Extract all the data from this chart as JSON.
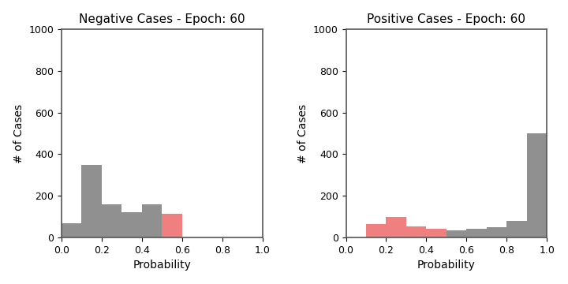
{
  "left_title": "Negative Cases - Epoch: 60",
  "right_title": "Positive Cases - Epoch: 60",
  "xlabel": "Probability",
  "ylabel": "# of Cases",
  "ylim": [
    0,
    1000
  ],
  "xlim": [
    0.0,
    1.0
  ],
  "bin_width": 0.1,
  "left_bars": {
    "bins": [
      0.0,
      0.1,
      0.2,
      0.3,
      0.4,
      0.5
    ],
    "heights": [
      70,
      350,
      160,
      120,
      160,
      115
    ],
    "colors": [
      "#909090",
      "#909090",
      "#909090",
      "#909090",
      "#909090",
      "#f08080"
    ]
  },
  "right_bars": {
    "bins": [
      0.1,
      0.2,
      0.3,
      0.4,
      0.5,
      0.6,
      0.7,
      0.8,
      0.9
    ],
    "heights": [
      65,
      100,
      55,
      40,
      35,
      40,
      50,
      80,
      500
    ],
    "colors": [
      "#f08080",
      "#f08080",
      "#f08080",
      "#f08080",
      "#909090",
      "#909090",
      "#909090",
      "#909090",
      "#909090"
    ]
  },
  "gray_color": "#909090",
  "pink_color": "#f08080",
  "background_color": "#ffffff",
  "yticks": [
    0,
    200,
    400,
    600,
    800,
    1000
  ],
  "xticks": [
    0.0,
    0.2,
    0.4,
    0.6,
    0.8,
    1.0
  ],
  "spine_color": "#555555",
  "figsize": [
    7.2,
    3.6
  ],
  "dpi": 100
}
